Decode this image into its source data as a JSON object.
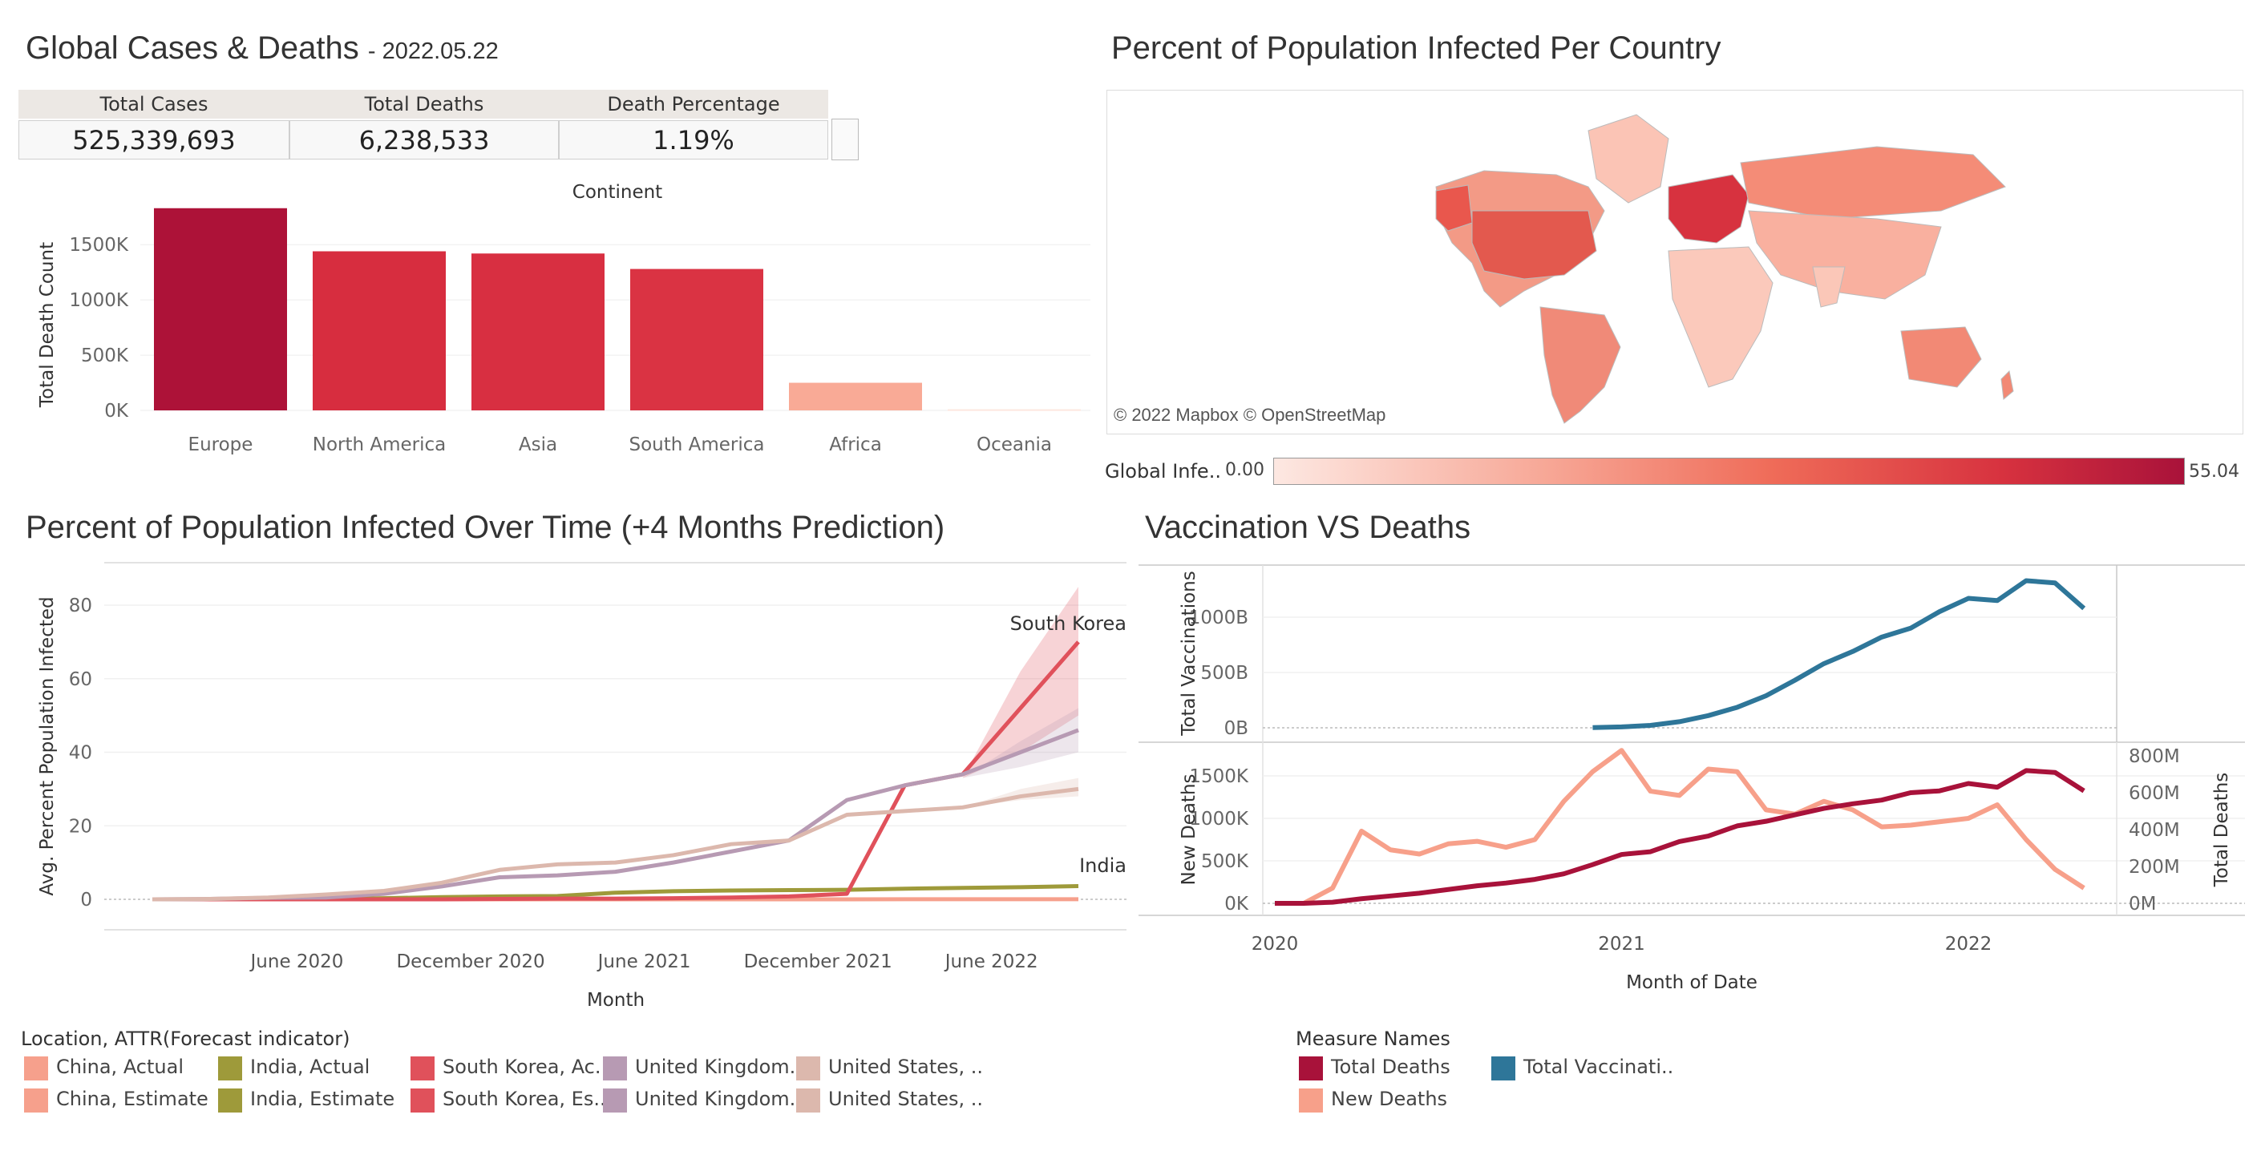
{
  "header": {
    "title": "Global Cases & Deaths",
    "date": "- 2022.05.22"
  },
  "kpi": {
    "headers": [
      "Total Cases",
      "Total Deaths",
      "Death Percentage"
    ],
    "values": [
      "525,339,693",
      "6,238,533",
      "1.19%"
    ]
  },
  "map": {
    "title": "Percent of Population Infected Per Country",
    "attribution": "© 2022 Mapbox © OpenStreetMap",
    "legend_label": "Global Infe..",
    "legend_min": "0.00",
    "legend_max": "55.04",
    "colors": {
      "low": "#fde8e2",
      "high": "#a9123a"
    }
  },
  "time_chart": {
    "title": "Percent of Population Infected Over Time (+4 Months Prediction)",
    "annotations": [
      "South Korea",
      "India"
    ]
  },
  "vax_chart": {
    "title": "Vaccination VS Deaths"
  },
  "legends": {
    "location_title": "Location, ATTR(Forecast indicator)",
    "location_items": [
      {
        "label": "China, Actual",
        "color": "#f6a08c"
      },
      {
        "label": "China, Estimate",
        "color": "#f6a08c"
      },
      {
        "label": "India, Actual",
        "color": "#9e9a3a"
      },
      {
        "label": "India, Estimate",
        "color": "#9e9a3a"
      },
      {
        "label": "South Korea, Ac..",
        "color": "#e0515b"
      },
      {
        "label": "South Korea, Es..",
        "color": "#e0515b"
      },
      {
        "label": "United Kingdom..",
        "color": "#b79ab3"
      },
      {
        "label": "United Kingdom..",
        "color": "#b79ab3"
      },
      {
        "label": "United States, ..",
        "color": "#dcb8ad"
      },
      {
        "label": "United States, ..",
        "color": "#dcb8ad"
      }
    ],
    "measure_title": "Measure Names",
    "measure_items": [
      {
        "label": "Total Deaths",
        "color": "#a8123a"
      },
      {
        "label": "New Deaths",
        "color": "#f7a08a"
      },
      {
        "label": "Total Vaccinati..",
        "color": "#2e7699"
      }
    ]
  },
  "chart_data": [
    {
      "type": "bar",
      "title": "Continent",
      "ylabel": "Total Death Count",
      "xlabel": "",
      "categories": [
        "Europe",
        "North America",
        "Asia",
        "South America",
        "Africa",
        "Oceania"
      ],
      "values": [
        1830000,
        1440000,
        1420000,
        1280000,
        250000,
        10000
      ],
      "colors": [
        "#ad1238",
        "#d72d3f",
        "#d82f41",
        "#da3343",
        "#f9aa96",
        "#fde6df"
      ],
      "yticks": [
        "0K",
        "500K",
        "1000K",
        "1500K"
      ],
      "ylim": [
        0,
        1850000
      ],
      "grid": true
    },
    {
      "type": "line",
      "title": "Percent of Population Infected Over Time (+4 Months Prediction)",
      "xlabel": "Month",
      "ylabel": "Avg. Percent Population Infected",
      "x_ticks": [
        "June 2020",
        "December 2020",
        "June 2021",
        "December 2021",
        "June 2022"
      ],
      "x": [
        "2020-01",
        "2020-03",
        "2020-05",
        "2020-07",
        "2020-09",
        "2020-11",
        "2021-01",
        "2021-03",
        "2021-05",
        "2021-07",
        "2021-09",
        "2021-11",
        "2022-01",
        "2022-03",
        "2022-05",
        "2022-07",
        "2022-09"
      ],
      "ylim": [
        0,
        85
      ],
      "yticks": [
        "0",
        "20",
        "40",
        "60",
        "80"
      ],
      "series": [
        {
          "name": "China",
          "color": "#f6a08c",
          "values": [
            0.01,
            0.01,
            0.01,
            0.01,
            0.01,
            0.01,
            0.01,
            0.01,
            0.01,
            0.01,
            0.01,
            0.01,
            0.01,
            0.02,
            0.03,
            0.03,
            0.03
          ]
        },
        {
          "name": "India",
          "color": "#9e9a3a",
          "values": [
            0,
            0,
            0,
            0.1,
            0.3,
            0.6,
            0.8,
            0.9,
            1.8,
            2.2,
            2.4,
            2.5,
            2.6,
            2.9,
            3.1,
            3.3,
            3.6
          ]
        },
        {
          "name": "South Korea",
          "color": "#e0515b",
          "values": [
            0,
            0,
            0,
            0,
            0,
            0,
            0.1,
            0.2,
            0.2,
            0.3,
            0.5,
            0.8,
            1.5,
            31,
            34,
            52,
            70
          ]
        },
        {
          "name": "United Kingdom",
          "color": "#b79ab3",
          "values": [
            0,
            0.1,
            0.4,
            0.5,
            1.5,
            3.5,
            6,
            6.5,
            7.5,
            10,
            13,
            16,
            27,
            31,
            34,
            40,
            46
          ]
        },
        {
          "name": "United States",
          "color": "#dcb8ad",
          "values": [
            0,
            0.1,
            0.5,
            1.3,
            2.3,
            4.5,
            8,
            9.5,
            10,
            12,
            15,
            16,
            23,
            24,
            25,
            28,
            30
          ]
        }
      ]
    },
    {
      "type": "line",
      "title": "Vaccination VS Deaths",
      "xlabel": "Month of Date",
      "x_ticks": [
        "2020",
        "2021",
        "2022"
      ],
      "panels": [
        {
          "ylabel": "Total Vaccinations",
          "yticks": [
            "0B",
            "500B",
            "1000B"
          ],
          "ylim": [
            0,
            1350
          ],
          "series": [
            {
              "name": "Total Vaccinations",
              "color": "#2e7699",
              "x": [
                "2020-12",
                "2021-01",
                "2021-02",
                "2021-03",
                "2021-04",
                "2021-05",
                "2021-06",
                "2021-07",
                "2021-08",
                "2021-09",
                "2021-10",
                "2021-11",
                "2021-12",
                "2022-01",
                "2022-02",
                "2022-03",
                "2022-04",
                "2022-05"
              ],
              "values": [
                2,
                8,
                22,
                55,
                110,
                185,
                290,
                430,
                580,
                690,
                820,
                900,
                1050,
                1170,
                1150,
                1330,
                1310,
                1080
              ]
            }
          ]
        },
        {
          "ylabel": "New Deaths",
          "ylabel_right": "Total Deaths",
          "yticks": [
            "0K",
            "500K",
            "1000K",
            "1500K"
          ],
          "yticks_right": [
            "0M",
            "200M",
            "400M",
            "600M",
            "800M"
          ],
          "series": [
            {
              "name": "New Deaths",
              "color": "#f7a08a",
              "axis": "left",
              "x": [
                "2020-01",
                "2020-02",
                "2020-03",
                "2020-04",
                "2020-05",
                "2020-06",
                "2020-07",
                "2020-08",
                "2020-09",
                "2020-10",
                "2020-11",
                "2020-12",
                "2021-01",
                "2021-02",
                "2021-03",
                "2021-04",
                "2021-05",
                "2021-06",
                "2021-07",
                "2021-08",
                "2021-09",
                "2021-10",
                "2021-11",
                "2021-12",
                "2022-01",
                "2022-02",
                "2022-03",
                "2022-04",
                "2022-05"
              ],
              "values": [
                0,
                0,
                180000,
                850000,
                630000,
                580000,
                700000,
                730000,
                660000,
                750000,
                1200000,
                1550000,
                1800000,
                1320000,
                1270000,
                1580000,
                1550000,
                1100000,
                1050000,
                1200000,
                1100000,
                900000,
                920000,
                960000,
                1000000,
                1160000,
                750000,
                400000,
                180000
              ]
            },
            {
              "name": "Total Deaths",
              "color": "#a8123a",
              "axis": "right",
              "x": [
                "2020-01",
                "2020-02",
                "2020-03",
                "2020-04",
                "2020-05",
                "2020-06",
                "2020-07",
                "2020-08",
                "2020-09",
                "2020-10",
                "2020-11",
                "2020-12",
                "2021-01",
                "2021-02",
                "2021-03",
                "2021-04",
                "2021-05",
                "2021-06",
                "2021-07",
                "2021-08",
                "2021-09",
                "2021-10",
                "2021-11",
                "2021-12",
                "2022-01",
                "2022-02",
                "2022-03",
                "2022-04",
                "2022-05"
              ],
              "values": [
                0,
                0,
                6,
                25,
                40,
                55,
                75,
                95,
                110,
                130,
                160,
                210,
                265,
                280,
                335,
                365,
                420,
                445,
                480,
                515,
                540,
                560,
                600,
                610,
                650,
                630,
                720,
                710,
                610
              ]
            }
          ]
        }
      ]
    }
  ]
}
